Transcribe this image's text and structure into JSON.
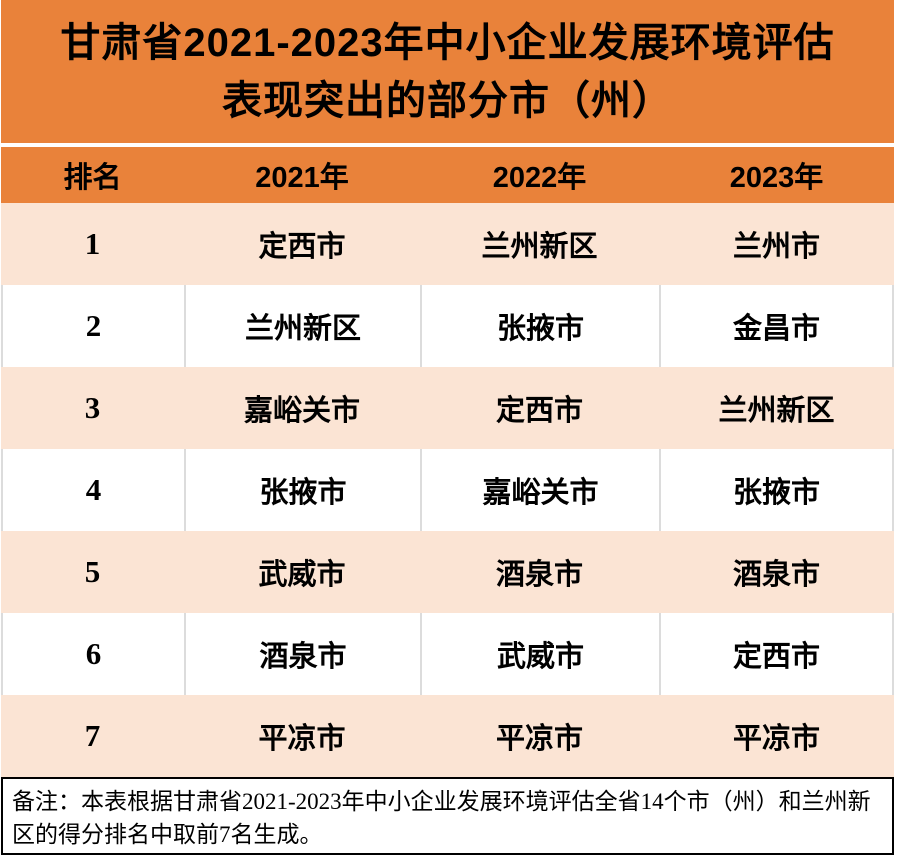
{
  "title": {
    "line1": "甘肃省2021-2023年中小企业发展环境评估",
    "line2": "表现突出的部分市（州）"
  },
  "table": {
    "headers": [
      "排名",
      "2021年",
      "2022年",
      "2023年"
    ],
    "rows": [
      {
        "rank": "1",
        "y2021": "定西市",
        "y2022": "兰州新区",
        "y2023": "兰州市"
      },
      {
        "rank": "2",
        "y2021": "兰州新区",
        "y2022": "张掖市",
        "y2023": "金昌市"
      },
      {
        "rank": "3",
        "y2021": "嘉峪关市",
        "y2022": "定西市",
        "y2023": "兰州新区"
      },
      {
        "rank": "4",
        "y2021": "张掖市",
        "y2022": "嘉峪关市",
        "y2023": "张掖市"
      },
      {
        "rank": "5",
        "y2021": "武威市",
        "y2022": "酒泉市",
        "y2023": "酒泉市"
      },
      {
        "rank": "6",
        "y2021": "酒泉市",
        "y2022": "武威市",
        "y2023": "定西市"
      },
      {
        "rank": "7",
        "y2021": "平凉市",
        "y2022": "平凉市",
        "y2023": "平凉市"
      }
    ]
  },
  "note": {
    "text": "备注：本表根据甘肃省2021-2023年中小企业发展环境评估全省14个市（州）和兰州新区的得分排名中取前7名生成。"
  },
  "colors": {
    "header_orange": "#E9823A",
    "row_peach": "#FBE4D4",
    "row_white": "#FFFFFF",
    "text_black": "#000000",
    "separator_gray": "#DCDCDC"
  }
}
